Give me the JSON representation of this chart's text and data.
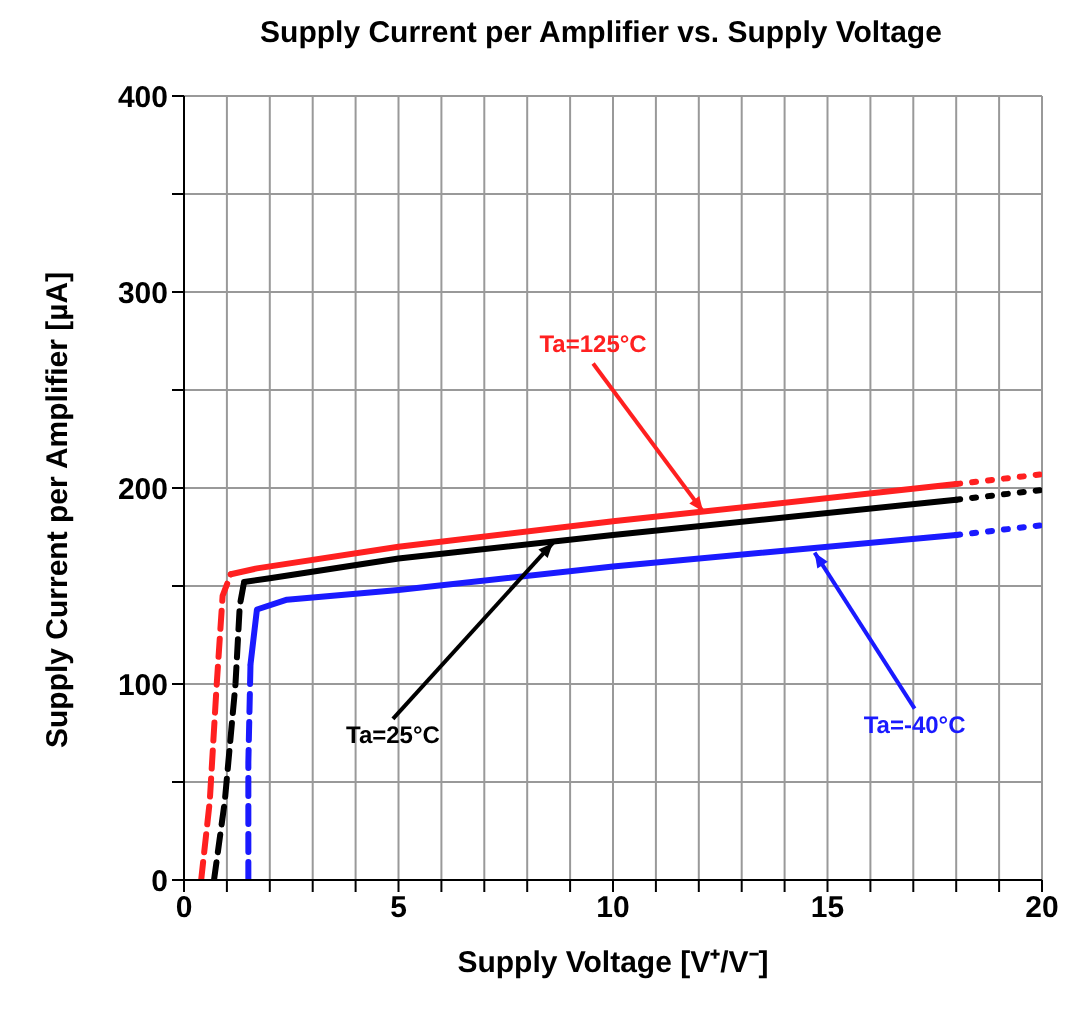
{
  "chart_data": {
    "type": "line",
    "title": "Supply Current per Amplifier vs. Supply Voltage",
    "xlabel": "Supply Voltage [V⁺/V⁻]",
    "ylabel": "Supply Current per Amplifier [µA]",
    "xlim": [
      0,
      20
    ],
    "ylim": [
      0,
      400
    ],
    "xticks": [
      0,
      {
        "value": 1,
        "label": null
      },
      {
        "value": 2,
        "label": null
      },
      {
        "value": 3,
        "label": null
      },
      {
        "value": 4,
        "label": null
      },
      5,
      {
        "value": 6,
        "label": null
      },
      {
        "value": 7,
        "label": null
      },
      {
        "value": 8,
        "label": null
      },
      {
        "value": 9,
        "label": null
      },
      10,
      {
        "value": 11,
        "label": null
      },
      {
        "value": 12,
        "label": null
      },
      {
        "value": 13,
        "label": null
      },
      {
        "value": 14,
        "label": null
      },
      15,
      {
        "value": 16,
        "label": null
      },
      {
        "value": 17,
        "label": null
      },
      {
        "value": 18,
        "label": null
      },
      {
        "value": 19,
        "label": null
      },
      20
    ],
    "yticks": [
      0,
      {
        "value": 50,
        "label": null
      },
      100,
      {
        "value": 150,
        "label": null
      },
      200,
      {
        "value": 250,
        "label": null
      },
      300,
      {
        "value": 350,
        "label": null
      },
      400
    ],
    "grid": true,
    "legend": false,
    "marker": "none",
    "series": [
      {
        "color": "#ff2020",
        "line_style": "dashed",
        "x": [
          0.4,
          0.6,
          0.76,
          0.9,
          1.09
        ],
        "values": [
          0,
          40,
          99,
          145,
          156
        ]
      },
      {
        "color": "#ff2020",
        "line_style": "solid",
        "x": [
          1.09,
          1.7,
          5,
          10,
          18
        ],
        "values": [
          156,
          159,
          170,
          183,
          202
        ]
      },
      {
        "color": "#ff2020",
        "line_style": "dotted",
        "x": [
          18,
          20
        ],
        "values": [
          202,
          207
        ]
      },
      {
        "color": "#000000",
        "line_style": "dashed",
        "x": [
          0.7,
          0.95,
          1.2,
          1.3,
          1.4
        ],
        "values": [
          0,
          40,
          100,
          140,
          152
        ]
      },
      {
        "color": "#000000",
        "line_style": "solid",
        "x": [
          1.4,
          2,
          5,
          10,
          18
        ],
        "values": [
          152,
          154,
          164,
          176,
          194
        ]
      },
      {
        "color": "#000000",
        "line_style": "dotted",
        "x": [
          18,
          20
        ],
        "values": [
          194,
          199
        ]
      },
      {
        "color": "#1a1aff",
        "line_style": "dashed",
        "x": [
          1.5,
          1.5,
          1.55
        ],
        "values": [
          0,
          60,
          110
        ]
      },
      {
        "color": "#1a1aff",
        "line_style": "solid",
        "x": [
          1.55,
          1.7,
          2.4,
          5,
          10,
          18
        ],
        "values": [
          110,
          138,
          143,
          148,
          160,
          176
        ]
      },
      {
        "color": "#1a1aff",
        "line_style": "dotted",
        "x": [
          18,
          20
        ],
        "values": [
          176,
          181
        ]
      }
    ],
    "annotations": [
      {
        "text": "Ta=125°C",
        "x": 12.1,
        "y": 188
      },
      {
        "text": "Ta=25°C",
        "x": 8.6,
        "y": 172
      },
      {
        "text": "Ta=-40°C",
        "x": 14.7,
        "y": 167
      }
    ]
  }
}
